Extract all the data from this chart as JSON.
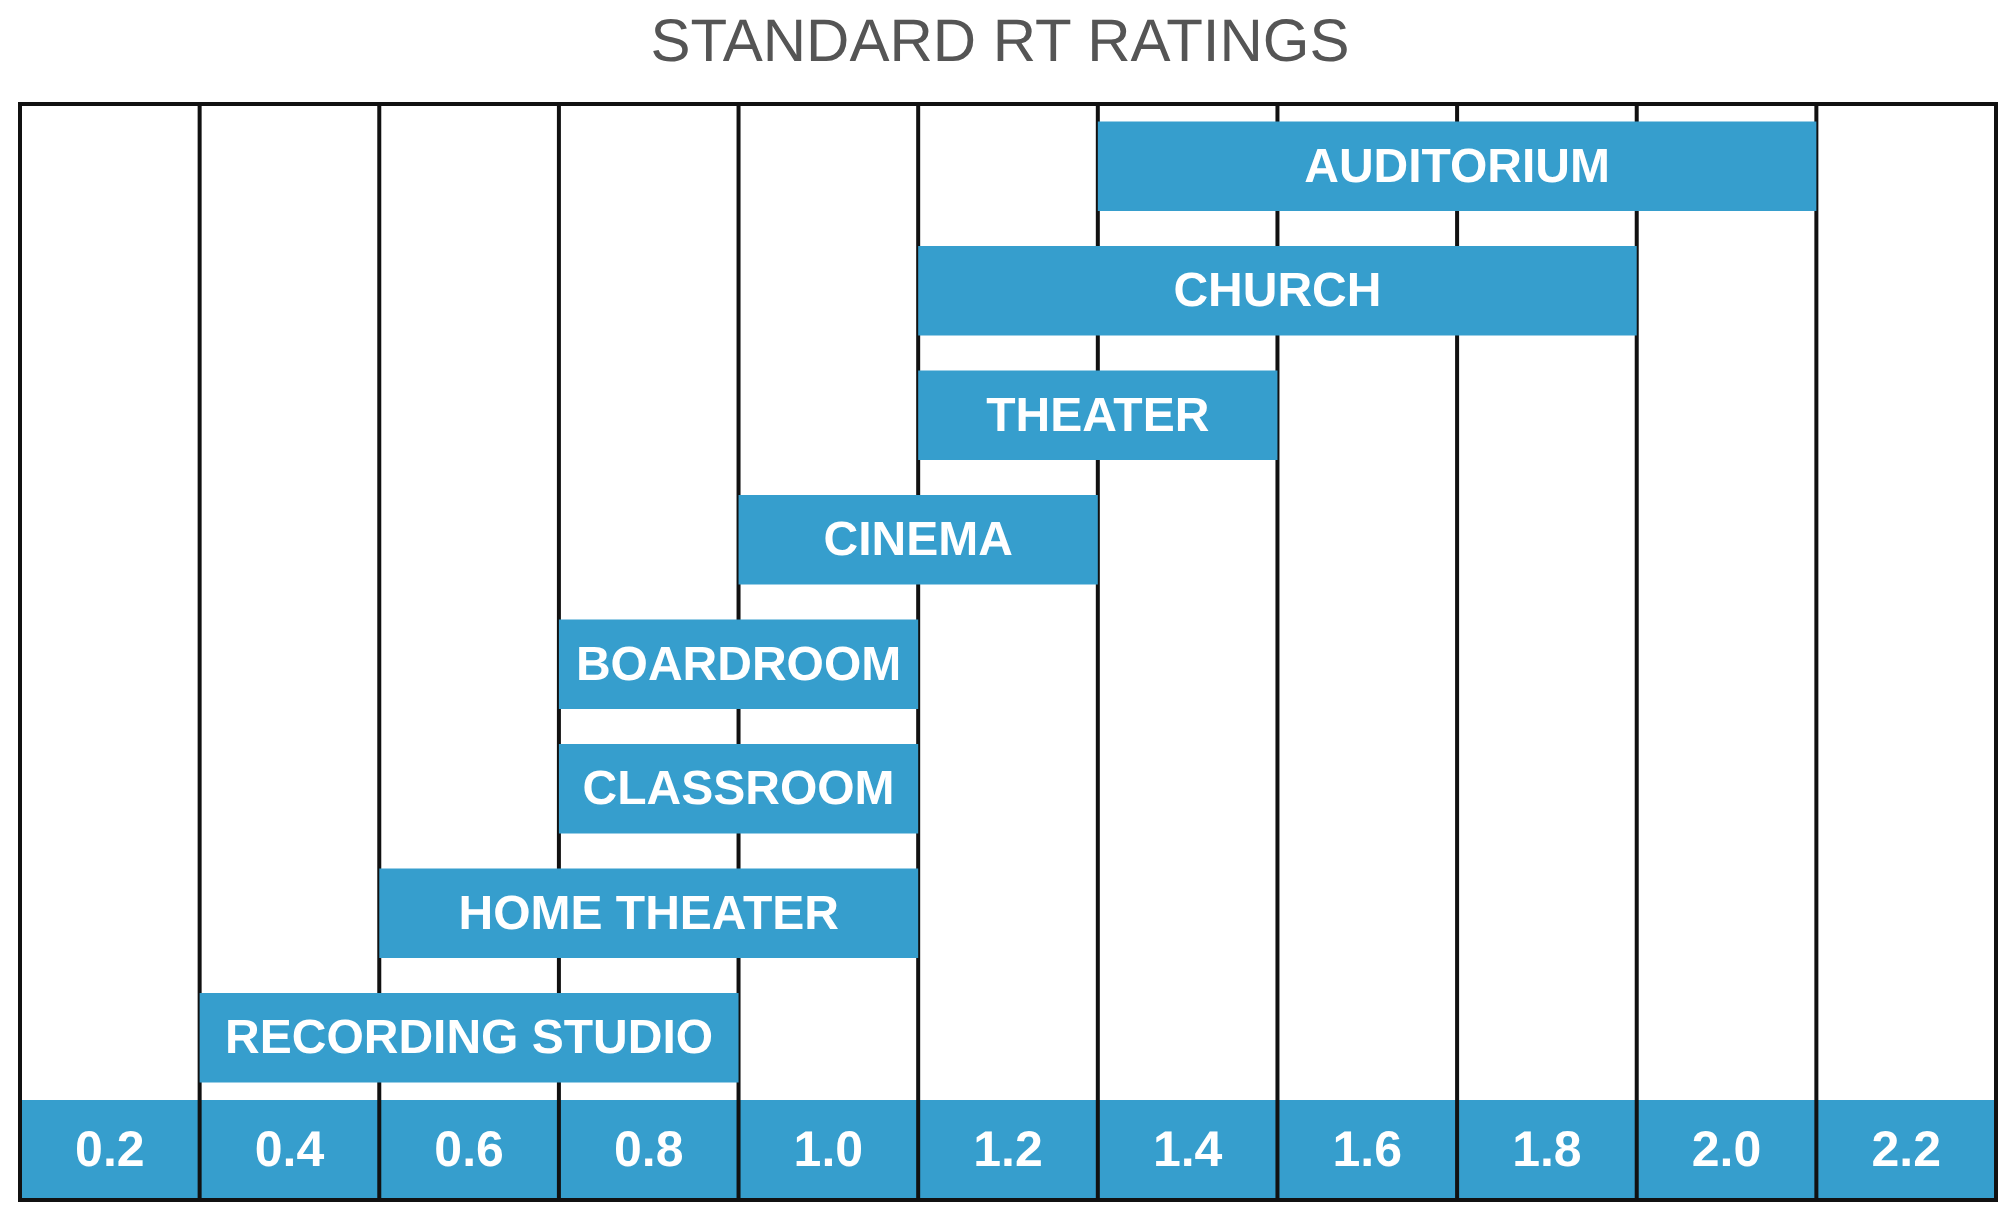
{
  "chart_data": {
    "type": "bar",
    "orientation": "horizontal",
    "title": "STANDARD RT RATINGS",
    "categories": [
      "AUDITORIUM",
      "CHURCH",
      "THEATER",
      "CINEMA",
      "BOARDROOM",
      "CLASSROOM",
      "HOME THEATER",
      "RECORDING STUDIO"
    ],
    "base": [
      1.3,
      1.1,
      1.1,
      0.9,
      0.7,
      0.7,
      0.5,
      0.3
    ],
    "values": [
      0.8,
      0.8,
      0.4,
      0.4,
      0.4,
      0.4,
      0.6,
      0.6
    ],
    "color": "#369ecd",
    "xlim": [
      0.1,
      2.3
    ],
    "xticks": [
      0.2,
      {
        "value": 0.3,
        "label": null
      },
      0.4,
      {
        "value": 0.5,
        "label": null
      },
      0.6,
      {
        "value": 0.7,
        "label": null
      },
      0.8,
      {
        "value": 0.9,
        "label": null
      },
      {
        "value": 1,
        "label": "1.0"
      },
      {
        "value": 1.1,
        "label": null
      },
      1.2,
      {
        "value": 1.3,
        "label": null
      },
      1.4,
      {
        "value": 1.5,
        "label": null
      },
      1.6,
      {
        "value": 1.7,
        "label": null
      },
      1.8,
      {
        "value": 1.9,
        "label": null
      },
      {
        "value": 2,
        "label": "2.0"
      },
      {
        "value": 2.1,
        "label": null
      },
      2.2
    ],
    "grid": "x"
  }
}
